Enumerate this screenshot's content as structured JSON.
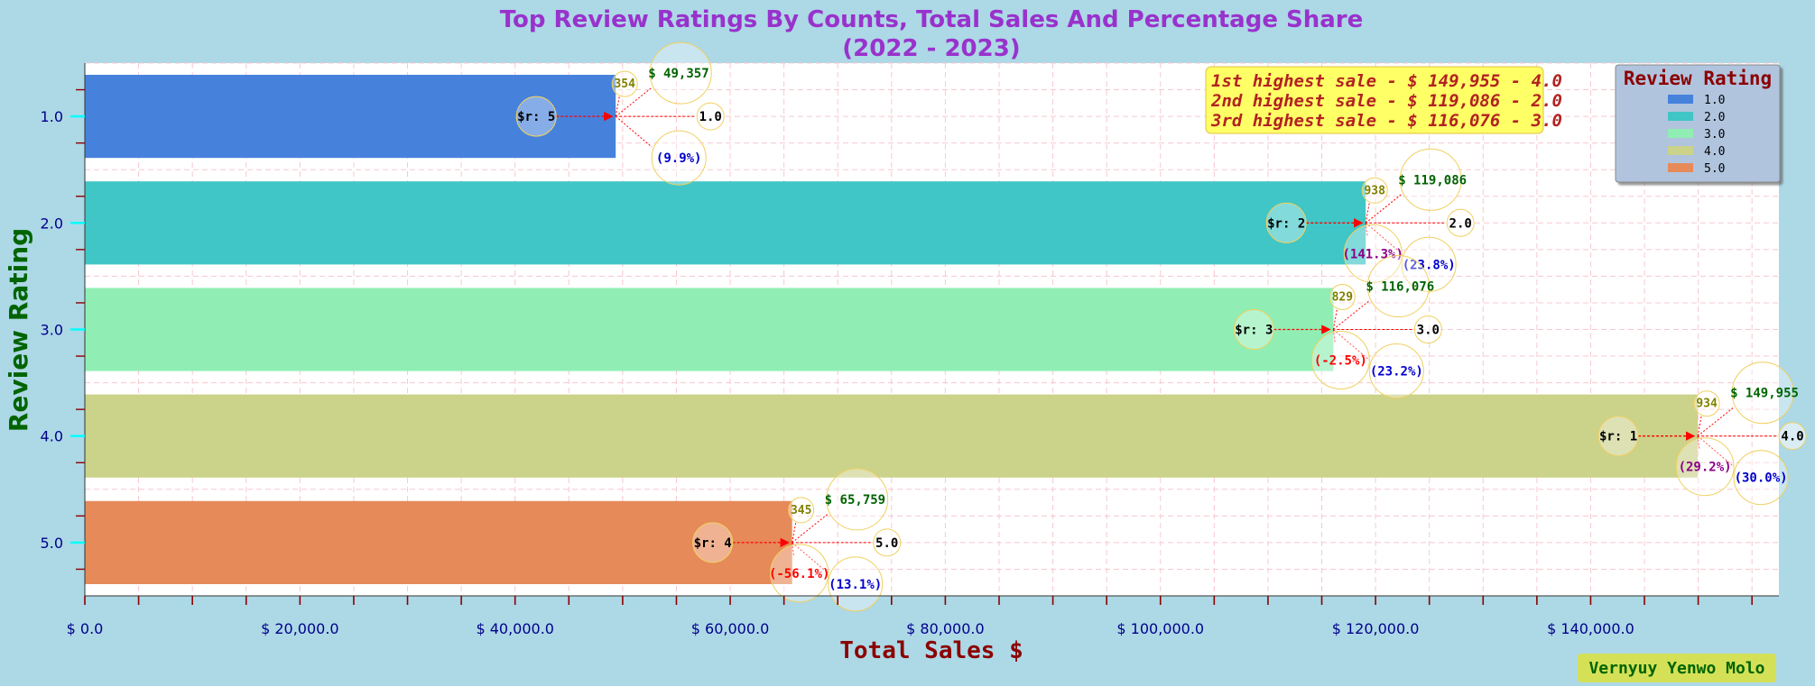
{
  "chart_data": {
    "type": "bar",
    "orientation": "horizontal",
    "title_line1": "Top Review Ratings By Counts, Total Sales And Percentage Share",
    "title_line2": "(2022 - 2023)",
    "xlabel": "Total Sales $",
    "ylabel": "Review Rating",
    "xlim": [
      0,
      157500
    ],
    "x_ticks": [
      0,
      20000,
      40000,
      60000,
      80000,
      100000,
      120000,
      140000
    ],
    "x_tick_labels": [
      "$ 0.0",
      "$ 20,000.0",
      "$ 40,000.0",
      "$ 60,000.0",
      "$ 80,000.0",
      "$ 100,000.0",
      "$ 120,000.0",
      "$ 140,000.0"
    ],
    "categories": [
      "1.0",
      "2.0",
      "3.0",
      "4.0",
      "5.0"
    ],
    "values": [
      49357,
      119086,
      116076,
      149955,
      65759
    ],
    "colors": [
      "#4682DC",
      "#40C6C6",
      "#90EEB4",
      "#CBD28A",
      "#E68A5A"
    ],
    "counts": [
      "354",
      "938",
      "829",
      "934",
      "345"
    ],
    "count_values": [
      354,
      938,
      829,
      934,
      345
    ],
    "sales_labels": [
      "$ 49,357",
      "$ 119,086",
      "$ 116,076",
      "$ 149,955",
      "$ 65,759"
    ],
    "rank_labels": [
      "$r: 5",
      "$r: 2",
      "$r: 3",
      "$r: 1",
      "$r: 4"
    ],
    "share_labels": [
      "(9.9%)",
      "(23.8%)",
      "(23.2%)",
      "(30.0%)",
      "(13.1%)"
    ],
    "share_values": [
      9.9,
      23.8,
      23.2,
      30.0,
      13.1
    ],
    "change_labels": [
      "",
      "(141.3%)",
      "(-2.5%)",
      "(29.2%)",
      "(-56.1%)"
    ],
    "change_values": [
      null,
      141.3,
      -2.5,
      29.2,
      -56.1
    ],
    "change_colors": [
      "",
      "#8B008B",
      "#FF0000",
      "#8B008B",
      "#FF0000"
    ],
    "legend_title": "Review Rating",
    "legend_entries": [
      "1.0",
      "2.0",
      "3.0",
      "4.0",
      "5.0"
    ],
    "legend_placement": "top-right",
    "annotation_lines": [
      "1st highest sale - $ 149,955 - 4.0",
      "2nd highest sale - $ 119,086 - 2.0",
      "3rd highest sale - $ 116,076 - 3.0"
    ],
    "grid": true
  },
  "watermark": "Vernyuy Yenwo Molo",
  "colors": {
    "background": "#ADD8E6",
    "title": "#9932CC",
    "ylabel": "#006400",
    "xlabel": "#8B0000",
    "tick_label": "#00008B",
    "annotation_text": "#B22222",
    "annotation_box": "#FFFF66",
    "legend_bg": "#B0C4DE",
    "legend_title": "#8B0000",
    "watermark_bg": "#D4E157",
    "watermark_text": "#006400"
  }
}
